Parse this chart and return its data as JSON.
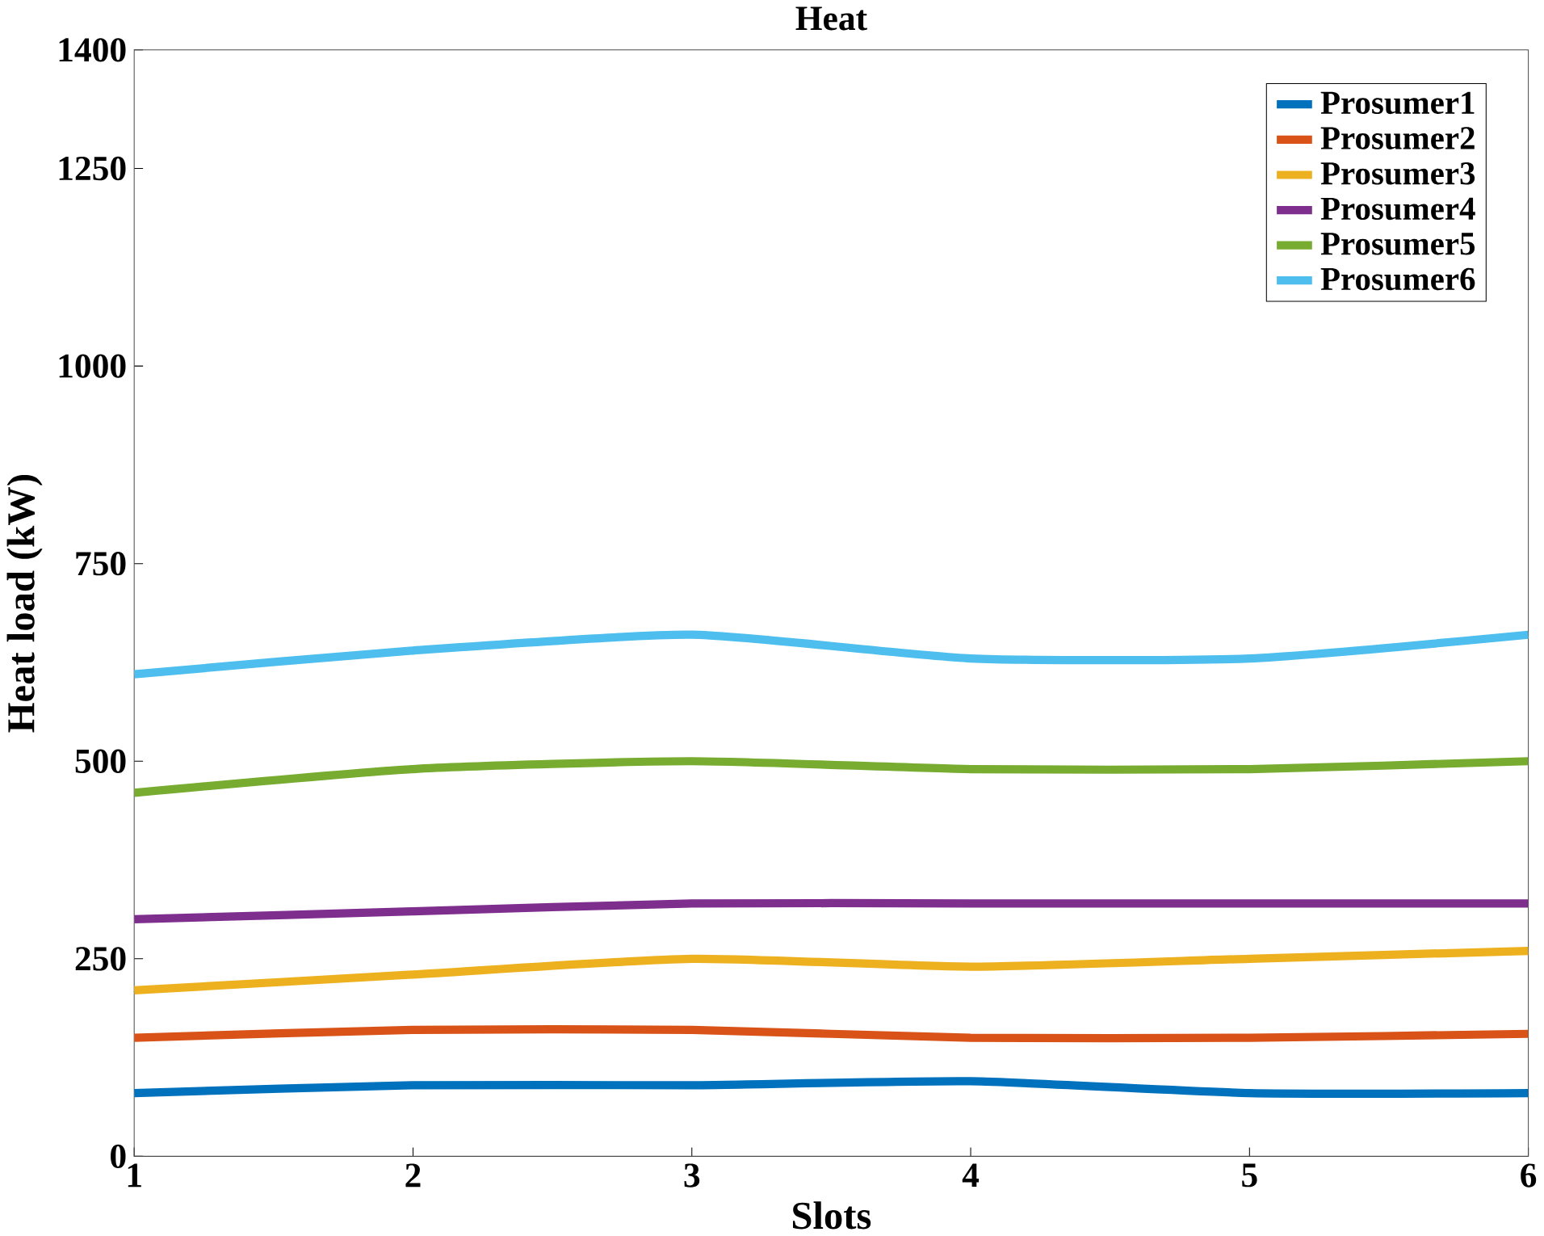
{
  "chart_data": {
    "type": "line",
    "title": "Heat",
    "xlabel": "Slots",
    "ylabel": "Heat load (kW)",
    "x": [
      1,
      2,
      3,
      4,
      5,
      6
    ],
    "xlim": [
      1,
      6
    ],
    "xticks": [
      1,
      2,
      3,
      4,
      5,
      6
    ],
    "ylim": [
      0,
      1400
    ],
    "yticks": [
      0,
      250,
      500,
      750,
      1000,
      1250,
      1400
    ],
    "legend": "top right",
    "grid": false,
    "marker": "none",
    "line_style": "solid",
    "series": [
      {
        "name": "Prosumer1",
        "color": "#0072bd",
        "values": [
          80,
          90,
          90,
          95,
          80,
          80
        ]
      },
      {
        "name": "Prosumer2",
        "color": "#d95319",
        "values": [
          150,
          160,
          160,
          150,
          150,
          155
        ]
      },
      {
        "name": "Prosumer3",
        "color": "#edb120",
        "values": [
          210,
          230,
          250,
          240,
          250,
          260
        ]
      },
      {
        "name": "Prosumer4",
        "color": "#7e2f8e",
        "values": [
          300,
          310,
          320,
          320,
          320,
          320
        ]
      },
      {
        "name": "Prosumer5",
        "color": "#77ac30",
        "values": [
          460,
          490,
          500,
          490,
          490,
          500
        ]
      },
      {
        "name": "Prosumer6",
        "color": "#4dbeee",
        "values": [
          610,
          640,
          660,
          630,
          630,
          660
        ]
      }
    ]
  }
}
